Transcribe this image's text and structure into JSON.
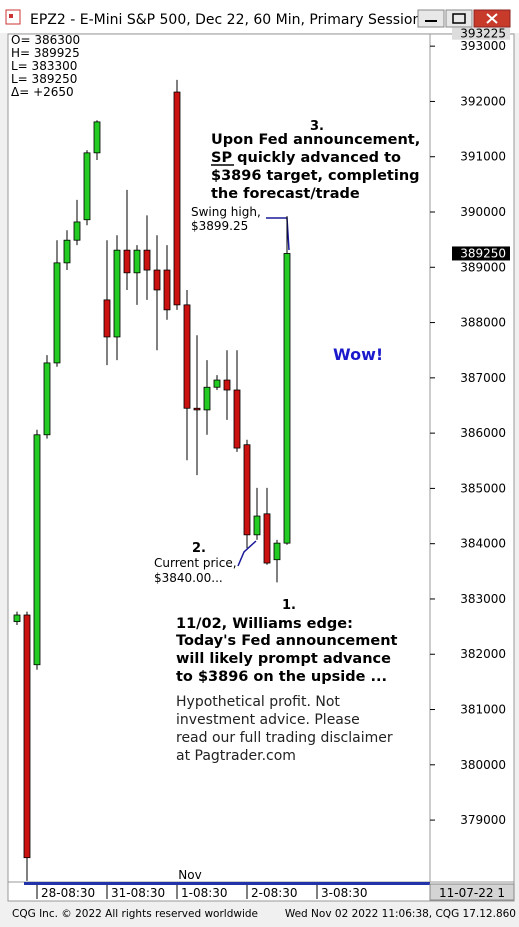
{
  "chart_data": {
    "type": "candlestick",
    "title": "EPZ2 - E-Mini S&P 500, Dec 22, 60 Min, Primary Session",
    "info": [
      "O=  386300",
      "H=  389925",
      "L=  383300",
      "L=  389250",
      "Δ=    +2650"
    ],
    "up_color": "#22cc22",
    "down_color": "#cc1111",
    "candles": [
      {
        "open": 382590,
        "high": 382770,
        "low": 382530,
        "close": 382710
      },
      {
        "open": 382710,
        "high": 382770,
        "low": 377900,
        "close": 378320
      },
      {
        "open": 381810,
        "high": 386060,
        "low": 381720,
        "close": 385970
      },
      {
        "open": 385970,
        "high": 387410,
        "low": 385900,
        "close": 387270
      },
      {
        "open": 387270,
        "high": 389490,
        "low": 387200,
        "close": 389080
      },
      {
        "open": 389080,
        "high": 389670,
        "low": 388950,
        "close": 389490
      },
      {
        "open": 389490,
        "high": 390220,
        "low": 389400,
        "close": 389820
      },
      {
        "open": 389860,
        "high": 391120,
        "low": 389760,
        "close": 391070
      },
      {
        "open": 391070,
        "high": 391660,
        "low": 390940,
        "close": 391630
      },
      {
        "open": 388410,
        "high": 389490,
        "low": 387230,
        "close": 387740
      },
      {
        "open": 387740,
        "high": 389580,
        "low": 387320,
        "close": 389310
      },
      {
        "open": 389310,
        "high": 390400,
        "low": 388590,
        "close": 388900
      },
      {
        "open": 388900,
        "high": 389400,
        "low": 388320,
        "close": 389310
      },
      {
        "open": 389310,
        "high": 389940,
        "low": 388410,
        "close": 388950
      },
      {
        "open": 388950,
        "high": 389580,
        "low": 387500,
        "close": 388590
      },
      {
        "open": 388950,
        "high": 389400,
        "low": 388050,
        "close": 388230
      },
      {
        "open": 392170,
        "high": 392390,
        "low": 388230,
        "close": 388320
      },
      {
        "open": 388320,
        "high": 388590,
        "low": 385510,
        "close": 386450
      },
      {
        "open": 386450,
        "high": 387770,
        "low": 385240,
        "close": 386420
      },
      {
        "open": 386420,
        "high": 387320,
        "low": 385970,
        "close": 386830
      },
      {
        "open": 386830,
        "high": 387050,
        "low": 386780,
        "close": 386960
      },
      {
        "open": 386960,
        "high": 387500,
        "low": 386240,
        "close": 386780
      },
      {
        "open": 386780,
        "high": 387500,
        "low": 385660,
        "close": 385730
      },
      {
        "open": 385790,
        "high": 385880,
        "low": 383920,
        "close": 384160
      },
      {
        "open": 384160,
        "high": 385010,
        "low": 384070,
        "close": 384500
      },
      {
        "open": 384540,
        "high": 385010,
        "low": 383620,
        "close": 383650
      },
      {
        "open": 383710,
        "high": 384070,
        "low": 383300,
        "close": 384010
      },
      {
        "open": 384010,
        "high": 389925,
        "low": 383980,
        "close": 389250
      }
    ],
    "xlim": [
      -0.7,
      41.3
    ],
    "xticks": [
      {
        "value": 2,
        "label": "28-08:30"
      },
      {
        "value": 9,
        "label": "31-08:30"
      },
      {
        "value": 16,
        "label": "1-08:30"
      },
      {
        "value": 23,
        "label": "2-08:30"
      },
      {
        "value": 30,
        "label": "3-08:30"
      }
    ],
    "month_label": "Nov",
    "ylim": [
      377880,
      393220
    ],
    "yticks": [
      379000,
      380000,
      381000,
      382000,
      383000,
      384000,
      385000,
      386000,
      387000,
      388000,
      389000,
      390000,
      391000,
      392000,
      393000
    ],
    "axis_top": 393225,
    "last_price": 389250,
    "date_box": "11-07-22 1",
    "annotations": {
      "n3": "3.",
      "fed": [
        "Upon Fed announcement,",
        "SP quickly advanced to",
        "$3896 target, completing",
        "the forecast/trade"
      ],
      "swing": [
        "Swing high,",
        "$3899.25"
      ],
      "wow": "Wow!",
      "n2": "2.",
      "current": [
        "Current price,",
        "$3840.00..."
      ],
      "n1": "1.",
      "edge": [
        "11/02, Williams edge:",
        "Today's Fed announcement",
        "will likely prompt advance",
        "to $3896 on the upside ..."
      ],
      "disclaimer": [
        "Hypothetical profit. Not",
        "investment advice. Please",
        "read our full trading disclaimer",
        "at Pagtrader.com"
      ]
    }
  },
  "footer": {
    "left": "CQG Inc. © 2022 All rights reserved worldwide",
    "right": "Wed Nov 02 2022 11:06:38, CQG 17.12.860"
  }
}
